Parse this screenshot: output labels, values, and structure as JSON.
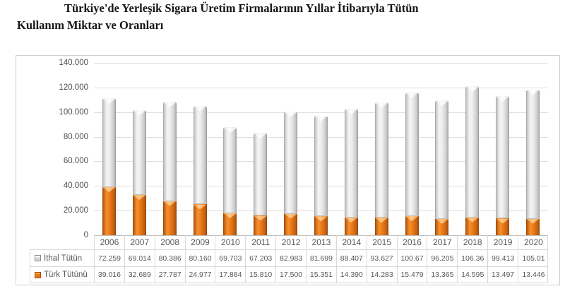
{
  "header": {
    "title_line1": "Türkiye'de Yerleşik Sigara Üretim Firmalarının Yıllar İtibarıyla Tütün",
    "title_line2": "Kullanım Miktar ve Oranları"
  },
  "chart_data": {
    "type": "bar",
    "stacked": true,
    "title": "Türkiye'de Yerleşik Sigara Üretim Firmalarının Yıllar İtibarıyla Tütün Kullanım Miktar ve Oranları",
    "categories": [
      "2006",
      "2007",
      "2008",
      "2009",
      "2010",
      "2011",
      "2012",
      "2013",
      "2014",
      "2015",
      "2016",
      "2017",
      "2018",
      "2019",
      "2020"
    ],
    "series": [
      {
        "name": "İthal Tütün",
        "color": "#d9d9d9",
        "values": [
          72259,
          69014,
          80386,
          80160,
          69703,
          67203,
          82983,
          81699,
          88407,
          93627,
          100670,
          96205,
          106360,
          99413,
          105010
        ],
        "labels": [
          "72.259",
          "69.014",
          "80.386",
          "80.160",
          "69.703",
          "67.203",
          "82.983",
          "81.699",
          "88.407",
          "93.627",
          "100.67",
          "96.205",
          "106.36",
          "99.413",
          "105.01"
        ]
      },
      {
        "name": "Türk Tütünü",
        "color": "#e8751a",
        "values": [
          39016,
          32689,
          27787,
          24977,
          17884,
          15810,
          17500,
          15351,
          14390,
          14283,
          15479,
          13365,
          14595,
          13497,
          13446
        ],
        "labels": [
          "39.016",
          "32.689",
          "27.787",
          "24.977",
          "17.884",
          "15.810",
          "17.500",
          "15.351",
          "14.390",
          "14.283",
          "15.479",
          "13.365",
          "14.595",
          "13.497",
          "13.446"
        ]
      }
    ],
    "ylim": [
      0,
      140000
    ],
    "ytick_step": 20000,
    "ytick_labels_top_down": [
      "140.000",
      "120.000",
      "100.000",
      "80.000",
      "60.000",
      "40.000",
      "20.000",
      "0"
    ],
    "grid": true,
    "legend_position": "data-table-left-column",
    "xlabel": "",
    "ylabel": ""
  }
}
